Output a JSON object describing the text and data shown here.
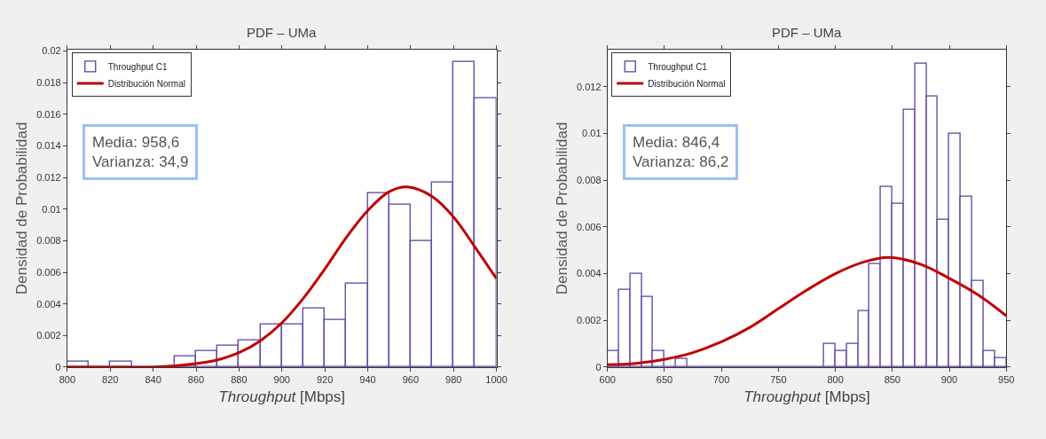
{
  "chart_data": [
    {
      "type": "histogram",
      "title": "PDF – UMa",
      "xlabel": "Throughput [Mbps]",
      "ylabel": "Densidad de Probabilidad",
      "bins": [
        800,
        810,
        820,
        830,
        840,
        850,
        860,
        870,
        880,
        890,
        900,
        910,
        920,
        930,
        940,
        950,
        960,
        970,
        980,
        990,
        1000
      ],
      "series": [
        {
          "name": "Throughput C1",
          "color": "#5b3f9e",
          "values": [
            0.00033,
            0,
            0.00033,
            0,
            0,
            0.00067,
            0.001,
            0.00133,
            0.00167,
            0.0027,
            0.0027,
            0.0037,
            0.003,
            0.0053,
            0.011,
            0.0103,
            0.008,
            0.0117,
            0.0193,
            0.017
          ]
        },
        {
          "name": "Distribución Normal",
          "type": "line",
          "color": "#c00000",
          "x": [
            800,
            820,
            840,
            860,
            870,
            880,
            890,
            900,
            910,
            920,
            930,
            940,
            950,
            958.6,
            970,
            980,
            990,
            1000
          ],
          "values": [
            0,
            0,
            0,
            0.00022,
            0.00046,
            0.00091,
            0.00167,
            0.0028,
            0.00435,
            0.0062,
            0.0082,
            0.0099,
            0.0111,
            0.0114,
            0.0108,
            0.0095,
            0.0076,
            0.0056
          ]
        }
      ],
      "xlim": [
        800,
        1000
      ],
      "xticks": [
        800,
        820,
        840,
        860,
        880,
        900,
        920,
        940,
        960,
        980,
        1000
      ],
      "ylim": [
        0,
        0.0201
      ],
      "yticks": [
        0,
        0.002,
        0.004,
        0.006,
        0.008,
        0.01,
        0.012,
        0.014,
        0.016,
        0.018,
        0.02
      ],
      "annotations": [
        "Media: 958,6\nVarianza: 34,9"
      ],
      "legend": "top left",
      "grid": false
    },
    {
      "type": "histogram",
      "title": "PDF – UMa",
      "xlabel": "Throughput [Mbps]",
      "ylabel": "Densidad de Probabilidad",
      "bins": [
        600,
        610,
        620,
        630,
        640,
        650,
        660,
        670,
        680,
        690,
        700,
        710,
        720,
        730,
        740,
        750,
        760,
        770,
        780,
        790,
        800,
        810,
        820,
        830,
        840,
        850,
        860,
        870,
        880,
        890,
        900,
        910,
        920,
        930,
        940,
        950
      ],
      "series": [
        {
          "name": "Throughput C1",
          "color": "#5b3f9e",
          "values": [
            0.00067,
            0.0033,
            0.004,
            0.003,
            0.00067,
            0,
            0.00033,
            0,
            0,
            0,
            0,
            0,
            0,
            0,
            0,
            0,
            0,
            0,
            0,
            0.001,
            0.0007,
            0.001,
            0.0024,
            0.0044,
            0.0077,
            0.007,
            0.011,
            0.013,
            0.0116,
            0.0063,
            0.01,
            0.0073,
            0.0037,
            0.0007,
            0.0004
          ]
        },
        {
          "name": "Distribución Normal",
          "type": "line",
          "color": "#c00000",
          "x": [
            600,
            625,
            650,
            675,
            700,
            725,
            750,
            775,
            800,
            825,
            846.4,
            875,
            900,
            925,
            950
          ],
          "values": [
            0.0001,
            0.00016,
            0.00033,
            0.00062,
            0.00108,
            0.0017,
            0.0025,
            0.0033,
            0.004,
            0.0045,
            0.0047,
            0.0044,
            0.0038,
            0.0031,
            0.0022
          ]
        }
      ],
      "xlim": [
        600,
        950
      ],
      "xticks": [
        600,
        650,
        700,
        750,
        800,
        850,
        900,
        950
      ],
      "ylim": [
        0,
        0.0136
      ],
      "yticks": [
        0,
        0.002,
        0.004,
        0.006,
        0.008,
        0.01,
        0.012
      ],
      "annotations": [
        "Media: 846,4\nVarianza: 86,2"
      ],
      "legend": "top left",
      "grid": false
    }
  ]
}
